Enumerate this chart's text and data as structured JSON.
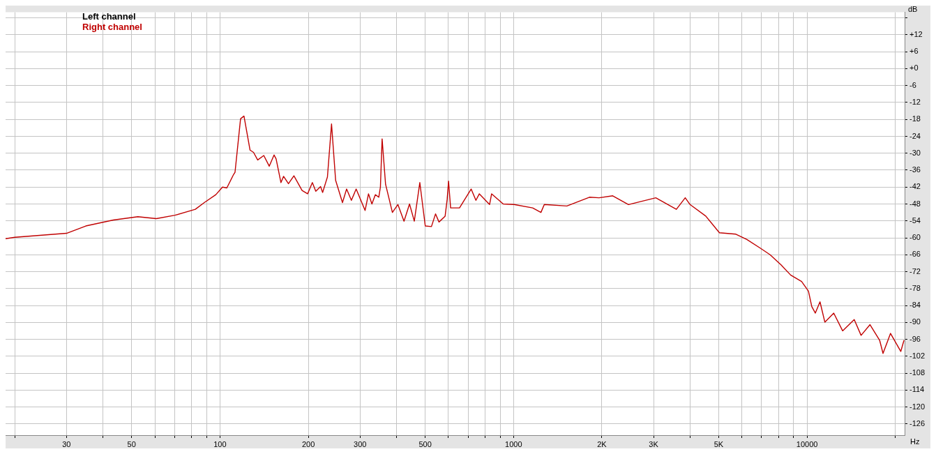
{
  "chart_data": {
    "type": "line",
    "xlabel": "Hz",
    "ylabel": "dB",
    "log": "x",
    "grid": true,
    "legend": "top left",
    "marker": "none",
    "line_style": "solid",
    "xlim": [
      18.6,
      21500
    ],
    "ylim": [
      -130,
      20
    ],
    "xticks": [
      {
        "value": 20,
        "label": null
      },
      30,
      {
        "value": 40,
        "label": null
      },
      50,
      {
        "value": 60,
        "label": null
      },
      {
        "value": 70,
        "label": null
      },
      {
        "value": 80,
        "label": null
      },
      {
        "value": 90,
        "label": null
      },
      100,
      200,
      300,
      {
        "value": 400,
        "label": null
      },
      500,
      {
        "value": 600,
        "label": null
      },
      {
        "value": 700,
        "label": null
      },
      {
        "value": 800,
        "label": null
      },
      {
        "value": 900,
        "label": null
      },
      1000,
      {
        "value": 2000,
        "label": "2K"
      },
      {
        "value": 3000,
        "label": "3K"
      },
      {
        "value": 4000,
        "label": null
      },
      {
        "value": 5000,
        "label": "5K"
      },
      {
        "value": 6000,
        "label": null
      },
      {
        "value": 7000,
        "label": null
      },
      {
        "value": 8000,
        "label": null
      },
      {
        "value": 9000,
        "label": null
      },
      10000,
      {
        "value": 20000,
        "label": null
      }
    ],
    "yticks": [
      {
        "value": 18,
        "label": null
      },
      {
        "value": 12,
        "label": "+12"
      },
      {
        "value": 6,
        "label": "+6"
      },
      {
        "value": 0,
        "label": "+0"
      },
      -6,
      -12,
      -18,
      -24,
      -30,
      -36,
      -42,
      -48,
      -54,
      -60,
      -66,
      -72,
      -78,
      -84,
      -90,
      -96,
      -102,
      -108,
      -114,
      -120,
      -126
    ],
    "series": [
      {
        "name": "Left channel",
        "color": "#000000"
      },
      {
        "name": "Right channel",
        "color": "#c00000",
        "x": [
          18.6,
          20,
          30,
          34.9,
          43.3,
          52.5,
          60.7,
          70.2,
          82.4,
          88.4,
          96.8,
          102,
          105.5,
          111.3,
          112.5,
          117.5,
          120.7,
          126.6,
          130.1,
          134.4,
          141,
          147.2,
          152.8,
          155.3,
          161.3,
          164.7,
          171.1,
          178.6,
          190.4,
          198.8,
          206.4,
          212,
          220.1,
          223.7,
          232.3,
          239.9,
          247.7,
          261.4,
          270,
          280.3,
          291,
          312.1,
          320.6,
          329.3,
          338.2,
          347.5,
          352,
          356.7,
          366.5,
          386.7,
          403.7,
          423.6,
          442.3,
          459.2,
          479.5,
          500.4,
          525.3,
          542.5,
          557.3,
          584.8,
          594.3,
          600.7,
          610.5,
          654.6,
          717.2,
          744.6,
          764.8,
          828.7,
          842.2,
          922.6,
          1005,
          1162,
          1240,
          1273,
          1520,
          1814,
          1956,
          2178,
          2464,
          3053,
          3588,
          3846,
          3994,
          4519,
          5030,
          5723,
          6236,
          6941,
          7483,
          8154,
          8792,
          9581,
          10110,
          10380,
          10670,
          11070,
          11500,
          12330,
          13220,
          14480,
          15280,
          16390,
          17670,
          18150,
          19250,
          20860,
          21400
        ],
        "values": [
          -60.3,
          -59.8,
          -58.4,
          -55.8,
          -53.7,
          -52.5,
          -53.2,
          -52,
          -49.9,
          -47.5,
          -44.7,
          -42,
          -42.3,
          -37.5,
          -36.8,
          -17.8,
          -16.8,
          -28.9,
          -29.7,
          -32.4,
          -30.8,
          -34.6,
          -30.6,
          -32,
          -40.4,
          -38.2,
          -40.8,
          -38,
          -43.2,
          -44.4,
          -40.4,
          -43.5,
          -41.8,
          -43.9,
          -38.4,
          -19.6,
          -39.6,
          -47.5,
          -42.7,
          -46.7,
          -42.7,
          -50.3,
          -44.4,
          -48,
          -44.7,
          -45.6,
          -42,
          -24.9,
          -41,
          -51,
          -48.2,
          -54.1,
          -48,
          -54.1,
          -40.4,
          -55.8,
          -56,
          -51.5,
          -54.4,
          -52.3,
          -46.3,
          -39.9,
          -49.4,
          -49.4,
          -42.7,
          -46.7,
          -44.4,
          -48.2,
          -44.4,
          -48,
          -48.2,
          -49.4,
          -51,
          -48.2,
          -48.7,
          -45.6,
          -45.8,
          -45.1,
          -48.2,
          -45.8,
          -49.9,
          -45.8,
          -48.2,
          -52.3,
          -58.2,
          -58.7,
          -60.6,
          -63.7,
          -66,
          -69.6,
          -73.2,
          -75.5,
          -78.9,
          -84.4,
          -86.7,
          -82.7,
          -89.9,
          -86.7,
          -93,
          -89,
          -94.6,
          -90.8,
          -96.3,
          -101,
          -93.9,
          -100.3,
          -96.3
        ]
      }
    ]
  }
}
